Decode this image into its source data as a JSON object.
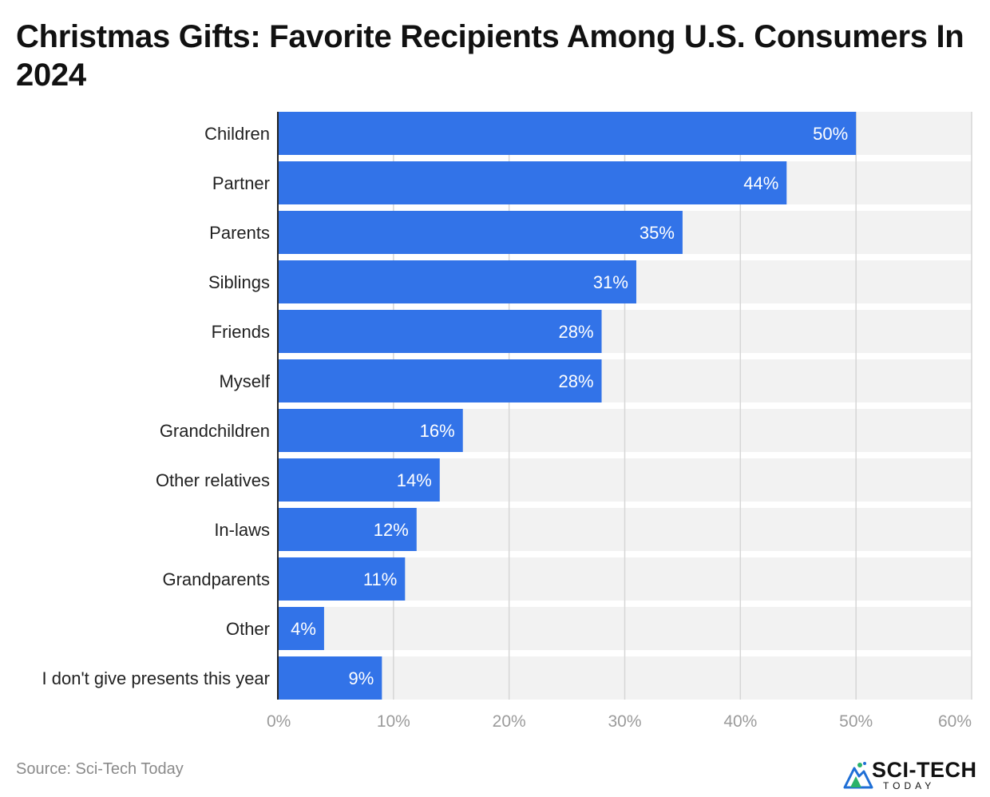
{
  "page": {
    "title": "Christmas Gifts: Favorite Recipients Among U.S. Consumers In 2024",
    "source": "Source: Sci-Tech Today",
    "logo": {
      "name": "SCI-TECH",
      "sub": "TODAY",
      "icon": "sci-tech-mountain-logo-icon"
    }
  },
  "colors": {
    "bar": "#3273e8",
    "track": "#f2f2f2",
    "grid": "#d6d6d6",
    "axis": "#222222",
    "category_label": "#222222",
    "tick_label": "#9b9b9b",
    "value_label": "#ffffff"
  },
  "chart_data": {
    "type": "bar",
    "orientation": "horizontal",
    "title": "Christmas Gifts: Favorite Recipients Among U.S. Consumers In 2024",
    "xlabel": "",
    "ylabel": "",
    "categories": [
      "Children",
      "Partner",
      "Parents",
      "Siblings",
      "Friends",
      "Myself",
      "Grandchildren",
      "Other relatives",
      "In-laws",
      "Grandparents",
      "Other",
      "I don't give presents this year"
    ],
    "values": [
      50,
      44,
      35,
      31,
      28,
      28,
      16,
      14,
      12,
      11,
      4,
      9
    ],
    "data_labels": [
      "50%",
      "44%",
      "35%",
      "31%",
      "28%",
      "28%",
      "16%",
      "14%",
      "12%",
      "11%",
      "4%",
      "9%"
    ],
    "xlim": [
      0,
      60
    ],
    "x_ticks": [
      0,
      10,
      20,
      30,
      40,
      50,
      60
    ],
    "x_tick_labels": [
      "0%",
      "10%",
      "20%",
      "30%",
      "40%",
      "50%",
      "60%"
    ],
    "grid": true,
    "legend": "none"
  }
}
